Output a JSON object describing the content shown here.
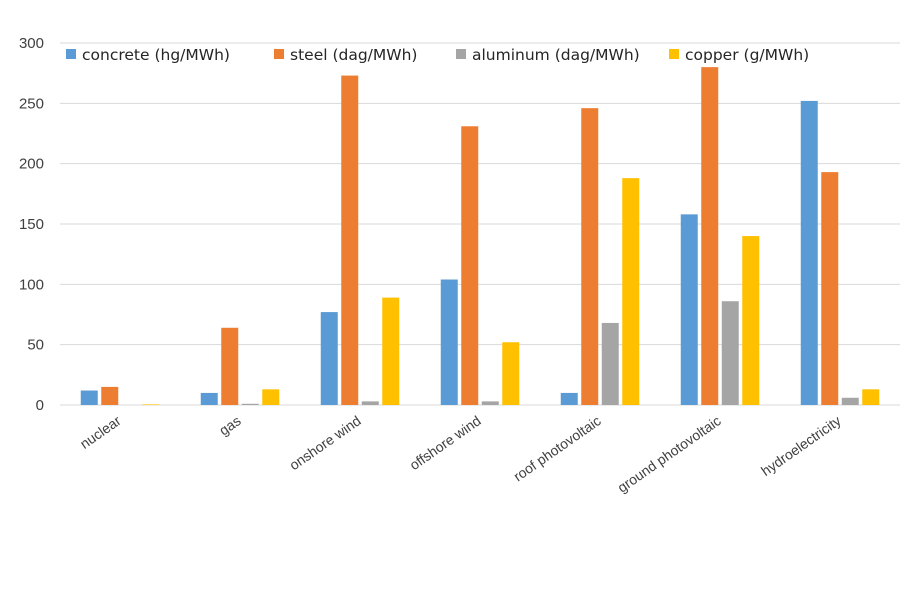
{
  "chart_data": {
    "type": "bar",
    "title": "",
    "xlabel": "",
    "ylabel": "",
    "ylim": [
      0,
      300
    ],
    "yticks": [
      0,
      50,
      100,
      150,
      200,
      250,
      300
    ],
    "grid": true,
    "legend_position": "top",
    "categories": [
      "nuclear",
      "gas",
      "onshore wind",
      "offshore wind",
      "roof photovoltaic",
      "ground photovoltaic",
      "hydroelectricity"
    ],
    "series": [
      {
        "name": "concrete (hg/MWh)",
        "color": "#5b9bd5",
        "values": [
          12,
          10,
          77,
          104,
          10,
          158,
          252
        ]
      },
      {
        "name": "steel (dag/MWh)",
        "color": "#ed7d31",
        "values": [
          15,
          64,
          273,
          231,
          246,
          280,
          193
        ]
      },
      {
        "name": "aluminum (dag/MWh)",
        "color": "#a5a5a5",
        "values": [
          0,
          1,
          3,
          3,
          68,
          86,
          6
        ]
      },
      {
        "name": "copper (g/MWh)",
        "color": "#ffc000",
        "values": [
          0.5,
          13,
          89,
          52,
          188,
          140,
          13
        ]
      }
    ]
  }
}
